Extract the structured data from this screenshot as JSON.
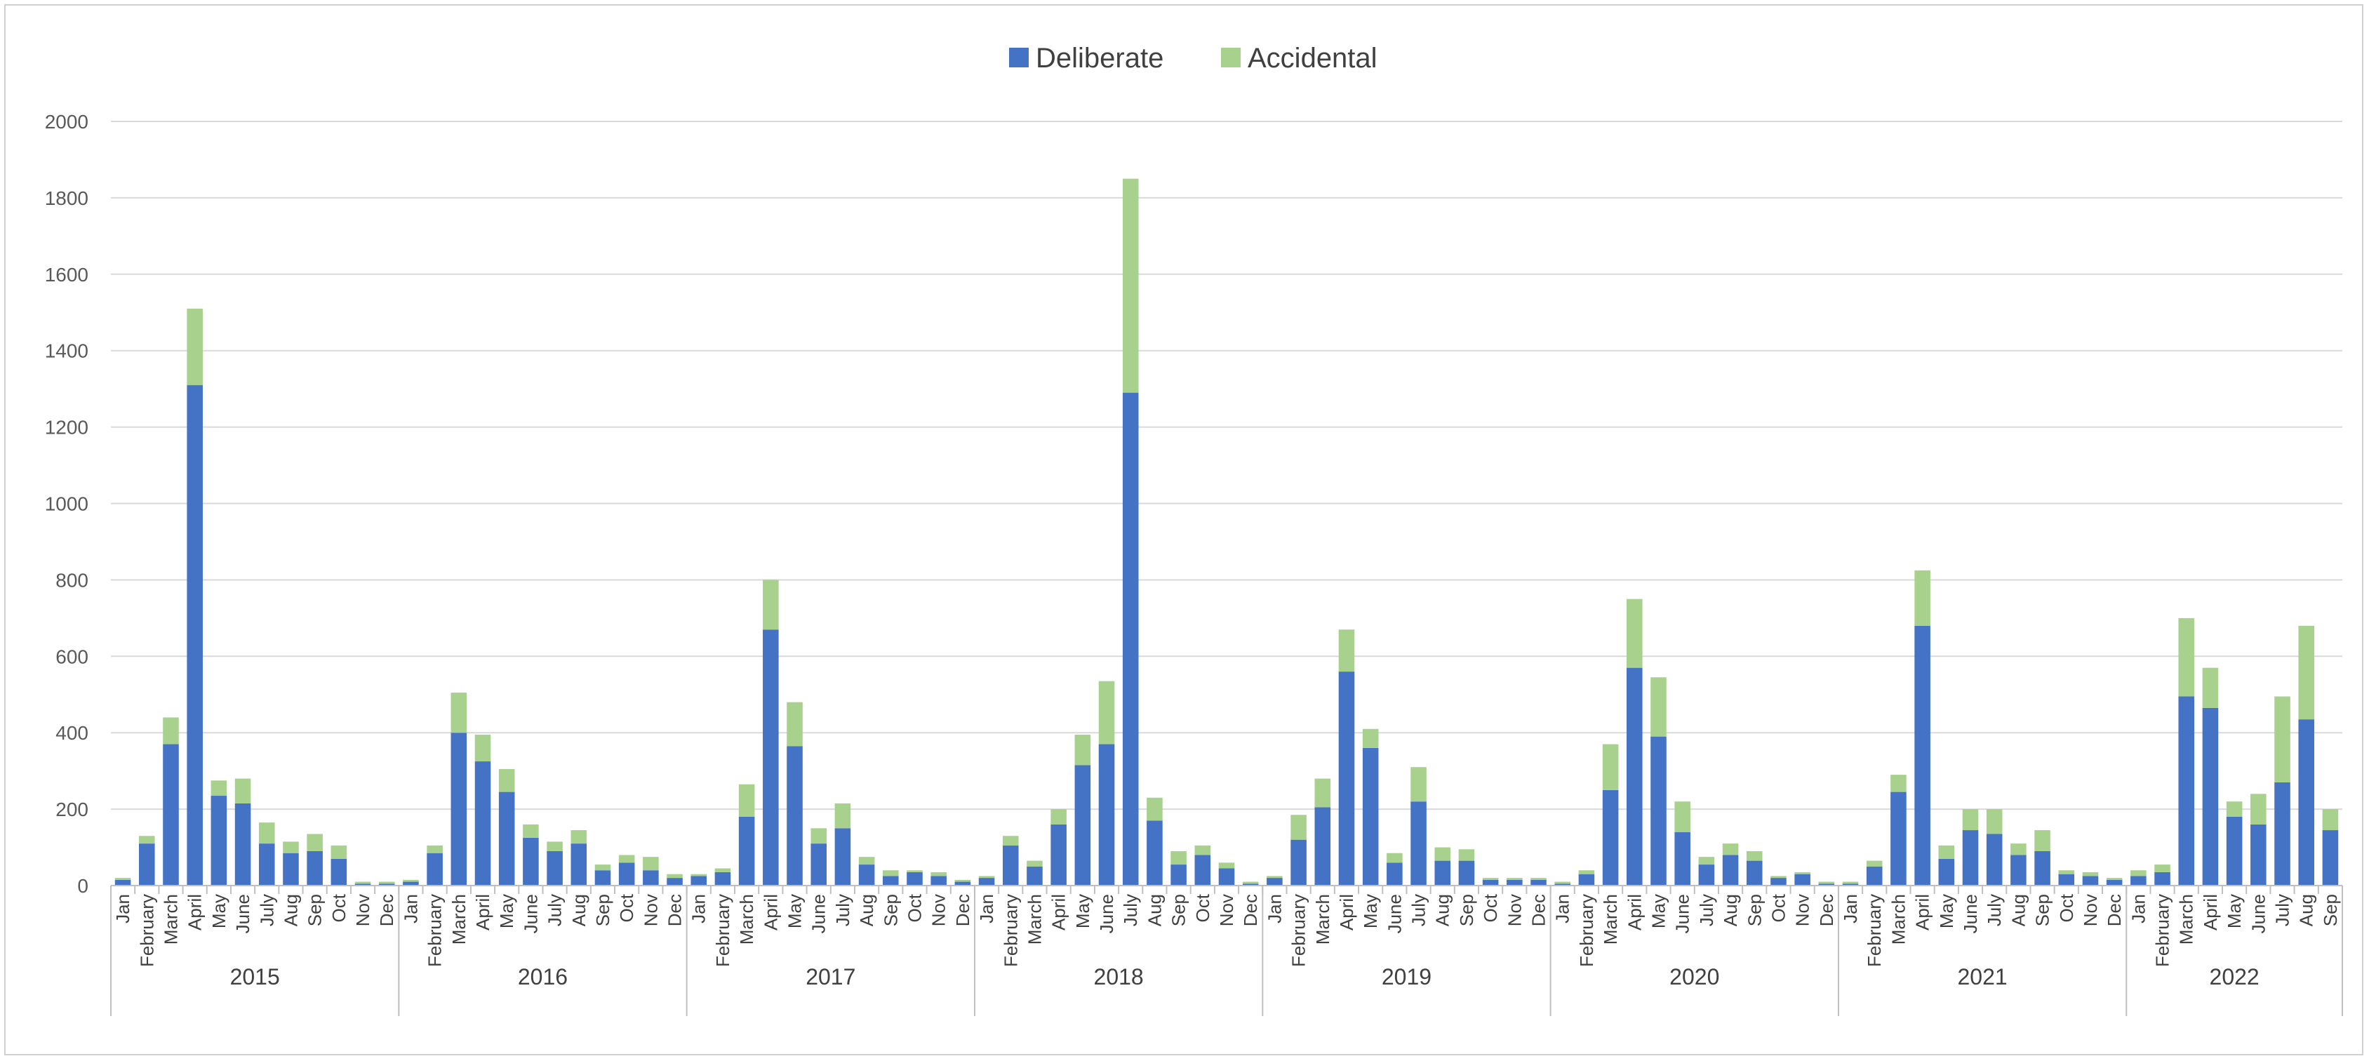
{
  "chart_data": {
    "type": "bar",
    "stacked": true,
    "grid": true,
    "legend_position": "top-center",
    "ylim": [
      0,
      2000
    ],
    "yticks": [
      "0",
      "200",
      "400",
      "600",
      "800",
      "1000",
      "1200",
      "1400",
      "1600",
      "1800",
      "2000"
    ],
    "colors": {
      "Deliberate": "#4472C4",
      "Accidental": "#A9D18E"
    },
    "years": [
      {
        "label": "2015",
        "months": [
          "Jan",
          "February",
          "March",
          "April",
          "May",
          "June",
          "July",
          "Aug",
          "Sep",
          "Oct",
          "Nov",
          "Dec"
        ],
        "deliberate": [
          15,
          110,
          370,
          1310,
          235,
          215,
          110,
          85,
          90,
          70,
          5,
          5
        ],
        "accidental": [
          5,
          20,
          70,
          200,
          40,
          65,
          55,
          30,
          45,
          35,
          5,
          5
        ]
      },
      {
        "label": "2016",
        "months": [
          "Jan",
          "February",
          "March",
          "April",
          "May",
          "June",
          "July",
          "Aug",
          "Sep",
          "Oct",
          "Nov",
          "Dec"
        ],
        "deliberate": [
          10,
          85,
          400,
          325,
          245,
          125,
          90,
          110,
          40,
          60,
          40,
          20
        ],
        "accidental": [
          5,
          20,
          105,
          70,
          60,
          35,
          25,
          35,
          15,
          20,
          35,
          10
        ]
      },
      {
        "label": "2017",
        "months": [
          "Jan",
          "February",
          "March",
          "April",
          "May",
          "June",
          "July",
          "Aug",
          "Sep",
          "Oct",
          "Nov",
          "Dec"
        ],
        "deliberate": [
          25,
          35,
          180,
          670,
          365,
          110,
          150,
          55,
          25,
          35,
          25,
          10
        ],
        "accidental": [
          5,
          10,
          85,
          130,
          115,
          40,
          65,
          20,
          15,
          5,
          10,
          5
        ]
      },
      {
        "label": "2018",
        "months": [
          "Jan",
          "February",
          "March",
          "April",
          "May",
          "June",
          "July",
          "Aug",
          "Sep",
          "Oct",
          "Nov",
          "Dec"
        ],
        "deliberate": [
          20,
          105,
          50,
          160,
          315,
          370,
          1290,
          170,
          55,
          80,
          45,
          5
        ],
        "accidental": [
          5,
          25,
          15,
          40,
          80,
          165,
          560,
          60,
          35,
          25,
          15,
          5
        ]
      },
      {
        "label": "2019",
        "months": [
          "Jan",
          "February",
          "March",
          "April",
          "May",
          "June",
          "July",
          "Aug",
          "Sep",
          "Oct",
          "Nov",
          "Dec"
        ],
        "deliberate": [
          20,
          120,
          205,
          560,
          360,
          60,
          220,
          65,
          65,
          15,
          15,
          15
        ],
        "accidental": [
          5,
          65,
          75,
          110,
          50,
          25,
          90,
          35,
          30,
          5,
          5,
          5
        ]
      },
      {
        "label": "2020",
        "months": [
          "Jan",
          "February",
          "March",
          "April",
          "May",
          "June",
          "July",
          "Aug",
          "Sep",
          "Oct",
          "Nov",
          "Dec"
        ],
        "deliberate": [
          5,
          30,
          250,
          570,
          390,
          140,
          55,
          80,
          65,
          20,
          30,
          5
        ],
        "accidental": [
          5,
          10,
          120,
          180,
          155,
          80,
          20,
          30,
          25,
          5,
          5,
          5
        ]
      },
      {
        "label": "2021",
        "months": [
          "Jan",
          "February",
          "March",
          "April",
          "May",
          "June",
          "July",
          "Aug",
          "Sep",
          "Oct",
          "Nov",
          "Dec"
        ],
        "deliberate": [
          5,
          50,
          245,
          680,
          70,
          145,
          135,
          80,
          90,
          30,
          25,
          15
        ],
        "accidental": [
          5,
          15,
          45,
          145,
          35,
          55,
          65,
          30,
          55,
          10,
          10,
          5
        ]
      },
      {
        "label": "2022",
        "months": [
          "Jan",
          "February",
          "March",
          "April",
          "May",
          "June",
          "July",
          "Aug",
          "Sep"
        ],
        "deliberate": [
          25,
          35,
          495,
          465,
          180,
          160,
          270,
          435,
          145
        ],
        "accidental": [
          15,
          20,
          205,
          105,
          40,
          80,
          225,
          245,
          55
        ]
      }
    ],
    "series": [
      {
        "name": "Deliberate"
      },
      {
        "name": "Accidental"
      }
    ]
  }
}
